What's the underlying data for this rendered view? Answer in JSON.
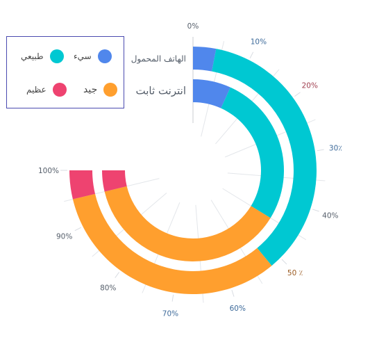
{
  "chart_data": {
    "type": "radial-stacked-bar",
    "value_axis": {
      "ticks": [
        {
          "value": 0,
          "label": "0%",
          "color": "#555e6a"
        },
        {
          "value": 10,
          "label": "10%",
          "color": "#3d6a9a"
        },
        {
          "value": 20,
          "label": "20%",
          "color": "#a04050"
        },
        {
          "value": 30,
          "label": "30٪",
          "color": "#3d6a9a"
        },
        {
          "value": 40,
          "label": "40%",
          "color": "#555e6a"
        },
        {
          "value": 50,
          "label": "50 ٪",
          "color": "#9a5a20"
        },
        {
          "value": 60,
          "label": "60%",
          "color": "#3d6a9a"
        },
        {
          "value": 70,
          "label": "70%",
          "color": "#3d6a9a"
        },
        {
          "value": 80,
          "label": "80%",
          "color": "#555e6a"
        },
        {
          "value": 90,
          "label": "90%",
          "color": "#555e6a"
        },
        {
          "value": 100,
          "label": "100%",
          "color": "#555e6a"
        }
      ],
      "ylim": [
        0,
        100
      ]
    },
    "categories": [
      "الهاتف المحمول",
      "انترنت ثابت"
    ],
    "series": [
      {
        "name": "سيء",
        "color": "#5087ec",
        "values": [
          4,
          9
        ]
      },
      {
        "name": "طبيعي",
        "color": "#00c8d2",
        "values": [
          48,
          36
        ]
      },
      {
        "name": "جيد",
        "color": "#ff9f2e",
        "values": [
          43,
          50
        ]
      },
      {
        "name": "عظيم",
        "color": "#ee4370",
        "values": [
          5,
          5
        ]
      }
    ]
  },
  "legend": {
    "items": [
      {
        "label": "سيء",
        "color": "#5087ec"
      },
      {
        "label": "طبيعي",
        "color": "#00c8d2"
      },
      {
        "label": "جيد",
        "color": "#ff9f2e"
      },
      {
        "label": "عظيم",
        "color": "#ee4370"
      }
    ]
  }
}
